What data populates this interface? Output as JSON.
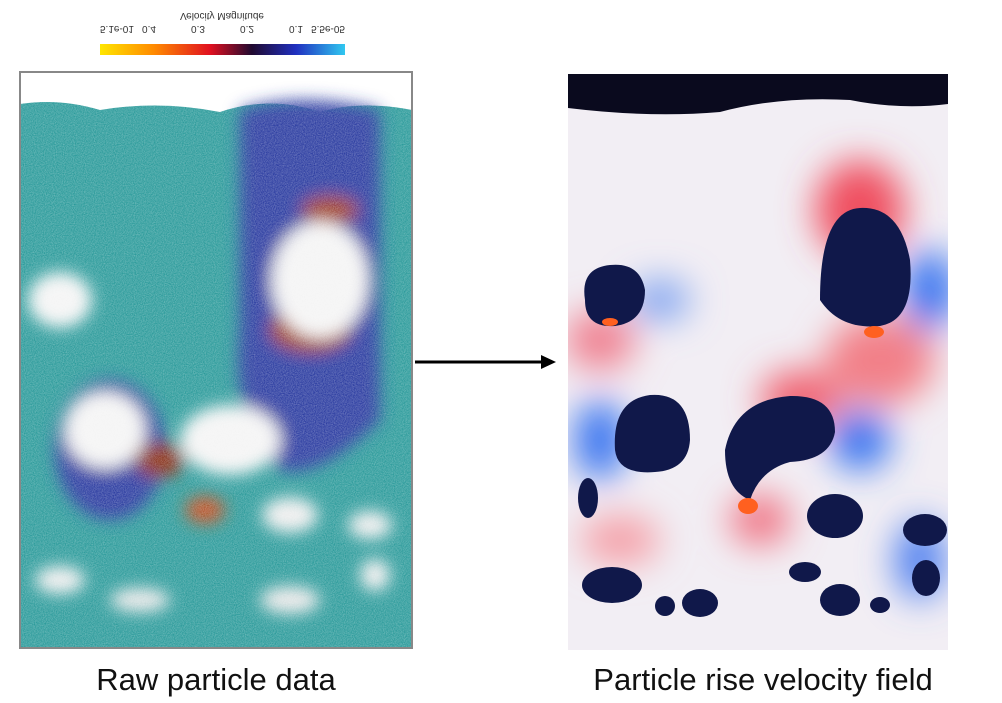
{
  "colorbar": {
    "title": "Velocity Magnitude",
    "ticks": [
      "5.1e-01",
      "0.4",
      "0.3",
      "0.2",
      "0.1",
      "5.5e-05"
    ]
  },
  "left_panel": {
    "caption": "Raw particle data"
  },
  "right_panel": {
    "caption": "Particle rise velocity field"
  }
}
